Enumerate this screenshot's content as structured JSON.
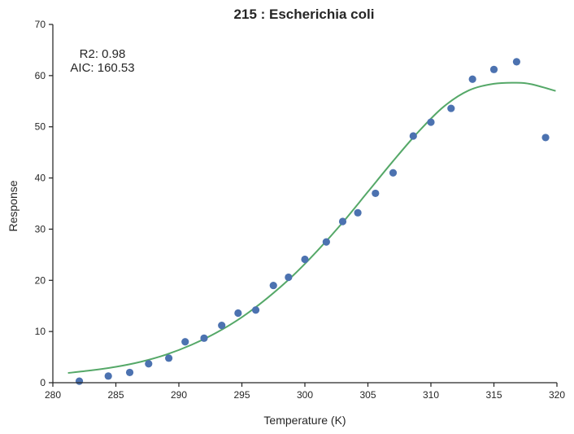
{
  "chart_data": {
    "type": "scatter",
    "title": "215 : Escherichia coli",
    "xlabel": "Temperature (K)",
    "ylabel": "Response",
    "xlim": [
      280,
      320
    ],
    "ylim": [
      0,
      70
    ],
    "xticks": [
      "280",
      "285",
      "290",
      "295",
      "300",
      "305",
      "310",
      "315",
      "320"
    ],
    "yticks": [
      "0",
      "10",
      "20",
      "30",
      "40",
      "50",
      "60",
      "70"
    ],
    "grid": false,
    "annotations": [
      "R2: 0.98",
      "AIC: 160.53"
    ],
    "points_color": "#4c72b0",
    "fit_color": "#55a868",
    "series": [
      {
        "kind": "points",
        "x": [
          282.1,
          284.4,
          286.1,
          287.6,
          289.2,
          290.5,
          292.0,
          293.4,
          294.7,
          296.1,
          297.5,
          298.7,
          300.0,
          301.7,
          303.0,
          304.2,
          305.6,
          307.0,
          308.6,
          310.0,
          311.6,
          313.3,
          315.0,
          316.8,
          319.1
        ],
        "y": [
          0.3,
          1.3,
          2.0,
          3.7,
          4.8,
          8.0,
          8.7,
          11.2,
          13.6,
          14.2,
          19.0,
          20.6,
          24.1,
          27.5,
          31.5,
          33.2,
          37.0,
          41.0,
          48.2,
          50.9,
          53.6,
          59.3,
          61.2,
          62.7,
          47.9
        ]
      },
      {
        "kind": "fit",
        "x": [
          281.2,
          283,
          285,
          287,
          289,
          291,
          293,
          295,
          297,
          299,
          301,
          303,
          305,
          307,
          309,
          311,
          313,
          315,
          316.8,
          318,
          319.9
        ],
        "y": [
          1.9,
          2.4,
          3.1,
          4.1,
          5.5,
          7.4,
          9.8,
          12.8,
          16.5,
          20.8,
          25.8,
          31.3,
          37.3,
          43.3,
          49.0,
          53.9,
          57.1,
          58.4,
          58.6,
          58.3,
          57.0
        ]
      }
    ]
  }
}
